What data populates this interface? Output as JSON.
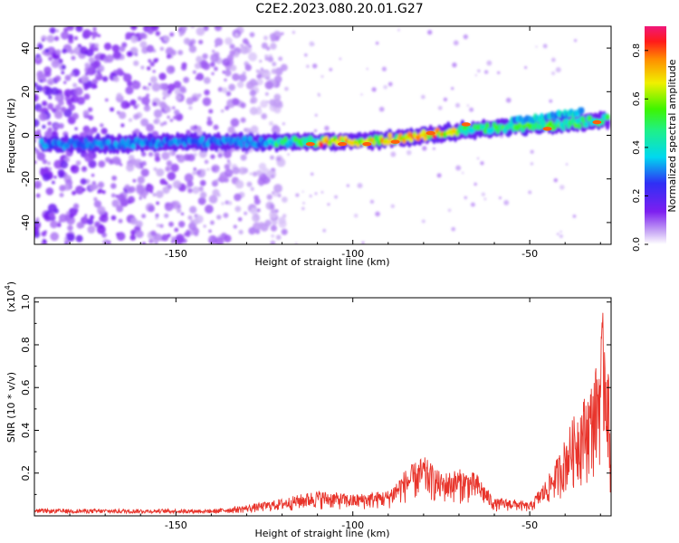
{
  "title": "C2E2.2023.080.20.01.G27",
  "chart_data": [
    {
      "type": "heatmap",
      "xlabel": "Height of straight line (km)",
      "ylabel": "Frequency (Hz)",
      "xlim": [
        -190,
        -27
      ],
      "ylim": [
        -50,
        50
      ],
      "xticks": [
        -150,
        -100,
        -50
      ],
      "xtick_labels": [
        "-150",
        "-100",
        "-50"
      ],
      "yticks": [
        -40,
        -20,
        0,
        20,
        40
      ],
      "ytick_labels": [
        "-40",
        "-20",
        "0",
        "20",
        "40"
      ],
      "colorbar": {
        "label": "Normalized spectral amplitude",
        "range": [
          0,
          0.9
        ],
        "ticks": [
          0,
          0.2,
          0.4,
          0.6,
          0.8
        ],
        "tick_labels": [
          "0.0",
          "0.2",
          "0.4",
          "0.6",
          "0.8"
        ],
        "colormap": "rainbow"
      },
      "ridge": {
        "x": [
          -190,
          -170,
          -150,
          -130,
          -115,
          -100,
          -85,
          -70,
          -55,
          -40,
          -30,
          -27
        ],
        "y": [
          -4,
          -4,
          -3,
          -3,
          -3,
          -3,
          -1,
          2,
          4,
          5,
          7,
          7
        ],
        "peak_amplitude": 0.9
      },
      "noise_region_x": [
        -190,
        -125
      ]
    },
    {
      "type": "line",
      "xlabel": "Height of straight line (km)",
      "ylabel": "SNR (10 * v/v)",
      "y_multiplier": "(x10",
      "y_multiplier_exp": "4",
      "y_multiplier_close": ")",
      "xlim": [
        -190,
        -27
      ],
      "ylim": [
        0,
        1.02
      ],
      "xticks": [
        -150,
        -100,
        -50
      ],
      "xtick_labels": [
        "-150",
        "-100",
        "-50"
      ],
      "yticks": [
        0.2,
        0.4,
        0.6,
        0.8,
        1.0
      ],
      "ytick_labels": [
        "0.2",
        "0.4",
        "0.6",
        "0.8",
        "1.0"
      ],
      "color": "#e8332a",
      "envelope": {
        "x": [
          -190,
          -140,
          -130,
          -120,
          -110,
          -100,
          -90,
          -85,
          -80,
          -75,
          -70,
          -65,
          -60,
          -55,
          -50,
          -45,
          -42,
          -38,
          -35,
          -33,
          -31,
          -30,
          -29,
          -28,
          -27
        ],
        "y": [
          0.02,
          0.03,
          0.05,
          0.08,
          0.12,
          0.1,
          0.12,
          0.22,
          0.28,
          0.2,
          0.22,
          0.2,
          0.08,
          0.08,
          0.06,
          0.18,
          0.28,
          0.45,
          0.55,
          0.6,
          0.72,
          0.85,
          1.0,
          0.8,
          0.3
        ]
      }
    }
  ]
}
